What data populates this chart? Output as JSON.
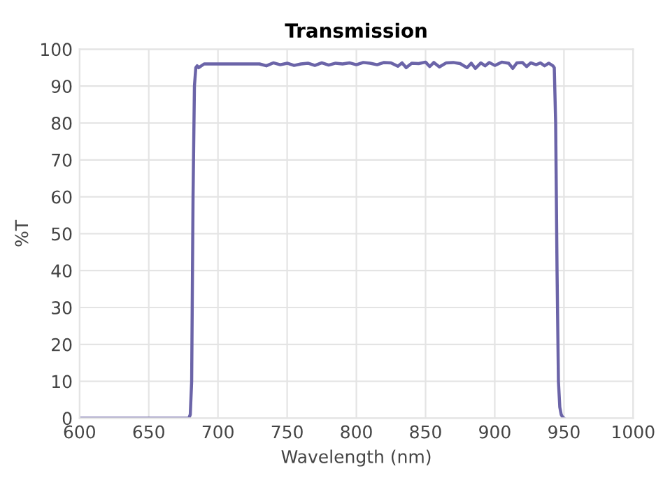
{
  "chart_data": {
    "type": "line",
    "title": "Transmission",
    "xlabel": "Wavelength (nm)",
    "ylabel": "%T",
    "xlim": [
      600,
      1000
    ],
    "ylim": [
      0,
      100
    ],
    "xticks": [
      600,
      650,
      700,
      750,
      800,
      850,
      900,
      950,
      1000
    ],
    "yticks": [
      0,
      10,
      20,
      30,
      40,
      50,
      60,
      70,
      80,
      90,
      100
    ],
    "grid": true,
    "marker": "none",
    "line_style": "solid",
    "series": [
      {
        "color": "#6b64a8",
        "x": [
          600,
          640,
          679,
          680,
          681,
          682,
          683,
          684,
          685,
          686,
          690,
          700,
          710,
          720,
          730,
          735,
          740,
          745,
          750,
          755,
          760,
          765,
          770,
          775,
          780,
          785,
          790,
          795,
          800,
          805,
          810,
          815,
          820,
          825,
          830,
          833,
          836,
          840,
          845,
          850,
          853,
          856,
          860,
          865,
          870,
          875,
          880,
          883,
          886,
          890,
          893,
          896,
          900,
          905,
          910,
          913,
          916,
          920,
          923,
          926,
          930,
          933,
          936,
          939,
          942,
          943,
          944,
          945,
          946,
          947,
          948,
          949,
          950
        ],
        "values": [
          0,
          0,
          0,
          1,
          10,
          60,
          90,
          95,
          95.5,
          95,
          96,
          96,
          96,
          96,
          96,
          95.5,
          96.3,
          95.8,
          96.2,
          95.6,
          96,
          96.2,
          95.6,
          96.3,
          95.7,
          96.2,
          96,
          96.3,
          95.8,
          96.4,
          96.2,
          95.8,
          96.4,
          96.3,
          95.4,
          96.3,
          95,
          96.2,
          96.1,
          96.5,
          95.3,
          96.4,
          95.2,
          96.3,
          96.4,
          96.1,
          95,
          96.2,
          94.8,
          96.3,
          95.5,
          96.4,
          95.6,
          96.5,
          96.2,
          94.8,
          96.3,
          96.4,
          95.3,
          96.3,
          95.8,
          96.3,
          95.5,
          96.2,
          95.5,
          95,
          80,
          40,
          10,
          3,
          1,
          0.3,
          0
        ]
      }
    ]
  }
}
